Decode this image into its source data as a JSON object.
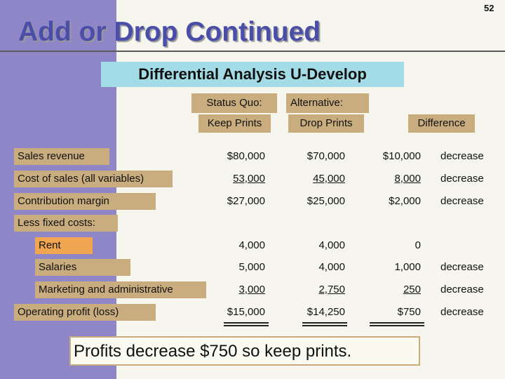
{
  "slide_number": "52",
  "title": "Add or Drop Continued",
  "subtitle": "Differential Analysis U-Develop",
  "headers": {
    "status_quo": "Status Quo:",
    "alternative": "Alternative:",
    "keep_prints": "Keep Prints",
    "drop_prints": "Drop Prints",
    "difference": "Difference"
  },
  "rows": [
    {
      "label": "Sales revenue",
      "status_quo": "$80,000",
      "alternative": "$70,000",
      "difference": "$10,000",
      "direction": "decrease"
    },
    {
      "label": "Cost of sales (all variables)",
      "status_quo": "53,000",
      "alternative": "45,000",
      "difference": "8,000",
      "direction": "decrease"
    },
    {
      "label": "Contribution margin",
      "status_quo": "$27,000",
      "alternative": "$25,000",
      "difference": "$2,000",
      "direction": "decrease"
    },
    {
      "label": "Less fixed costs:"
    },
    {
      "label": "Rent",
      "status_quo": "4,000",
      "alternative": "4,000",
      "difference": "0",
      "direction": ""
    },
    {
      "label": "Salaries",
      "status_quo": "5,000",
      "alternative": "4,000",
      "difference": "1,000",
      "direction": "decrease"
    },
    {
      "label": "Marketing and administrative",
      "status_quo": "3,000",
      "alternative": "2,750",
      "difference": "250",
      "direction": "decrease"
    },
    {
      "label": "Operating profit (loss)",
      "status_quo": "$15,000",
      "alternative": "$14,250",
      "difference": "$750",
      "direction": "decrease"
    }
  ],
  "conclusion": "Profits decrease $750 so keep prints.",
  "colors": {
    "stripe": "#8f86c8",
    "title": "#4b4ea8",
    "subtitle_bg": "#a3dce6",
    "tan": "#c9ad7e",
    "rent_bg": "#f0a550",
    "header_bg": "#c9ad7e"
  }
}
